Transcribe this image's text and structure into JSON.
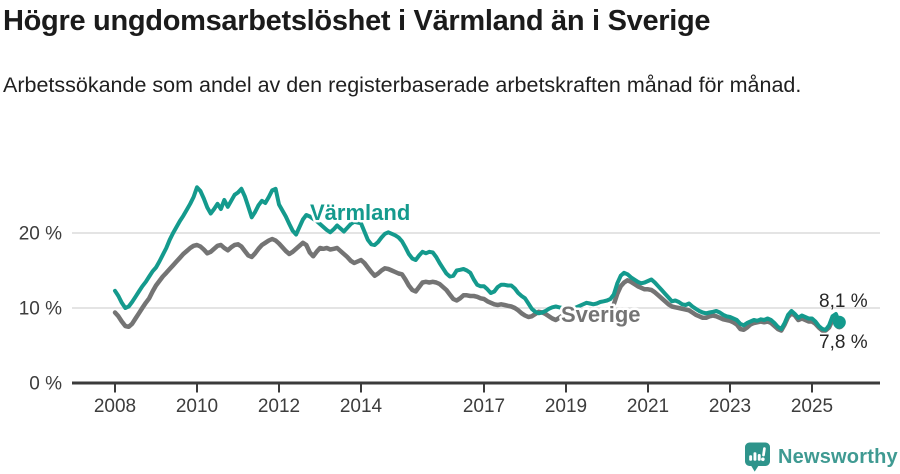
{
  "header": {
    "title": "Högre ungdomsarbetslöshet i Värmland än i Sverige",
    "subtitle": "Arbetssökande som andel av den registerbaserade arbetskraften månad för månad."
  },
  "chart_data": {
    "type": "line",
    "frequency": "monthly",
    "x_start": "2008-01",
    "x_end": "2025-09",
    "unit": "%",
    "grid": "horizontal",
    "legend_position": "inline-labels",
    "ylim": [
      0,
      27
    ],
    "yticks": [
      {
        "value": 0,
        "label": "0 %"
      },
      {
        "value": 10,
        "label": "10 %"
      },
      {
        "value": 20,
        "label": "20 %"
      }
    ],
    "xticks": [
      2008,
      2010,
      2012,
      2014,
      2017,
      2019,
      2021,
      2023,
      2025
    ],
    "series": [
      {
        "name": "Värmland",
        "color": "#149a8d",
        "end_value": 8.1,
        "end_label": "8,1 %",
        "values": [
          12.3,
          11.6,
          10.7,
          10.0,
          10.2,
          10.8,
          11.5,
          12.2,
          12.9,
          13.5,
          14.2,
          14.9,
          15.4,
          16.2,
          17.1,
          18.0,
          19.1,
          20.0,
          20.8,
          21.6,
          22.3,
          23.1,
          23.9,
          24.8,
          26.1,
          25.6,
          24.6,
          23.4,
          22.6,
          23.2,
          23.9,
          23.2,
          24.4,
          23.5,
          24.3,
          25.1,
          25.4,
          25.9,
          24.9,
          23.5,
          22.1,
          22.8,
          23.7,
          24.3,
          24.0,
          24.8,
          25.7,
          25.9,
          23.8,
          23.0,
          22.2,
          21.2,
          20.3,
          19.8,
          20.8,
          21.8,
          22.4,
          22.2,
          21.9,
          21.6,
          21.2,
          20.8,
          20.4,
          20.1,
          20.5,
          21.0,
          20.6,
          20.2,
          20.7,
          21.2,
          21.5,
          21.4,
          21.3,
          20.2,
          19.1,
          18.5,
          18.4,
          18.8,
          19.4,
          19.9,
          20.1,
          19.9,
          19.7,
          19.4,
          18.9,
          18.1,
          17.2,
          16.6,
          16.4,
          17.0,
          17.5,
          17.3,
          17.5,
          17.4,
          16.8,
          16.0,
          15.3,
          14.6,
          14.2,
          14.3,
          15.0,
          15.1,
          15.2,
          15.0,
          14.7,
          13.8,
          13.1,
          12.9,
          12.9,
          12.5,
          12.0,
          12.2,
          12.8,
          13.1,
          13.1,
          13.0,
          13.0,
          12.6,
          12.0,
          11.6,
          11.3,
          10.6,
          9.9,
          9.5,
          9.3,
          9.4,
          9.6,
          9.9,
          10.1,
          10.2,
          10.1,
          10.0,
          10.1,
          10.0,
          9.9,
          10.1,
          10.3,
          10.5,
          10.7,
          10.6,
          10.5,
          10.6,
          10.8,
          10.9,
          11.0,
          11.2,
          11.8,
          13.3,
          14.3,
          14.7,
          14.5,
          14.1,
          13.8,
          13.5,
          13.3,
          13.4,
          13.6,
          13.8,
          13.4,
          12.9,
          12.4,
          11.9,
          11.4,
          10.9,
          11.0,
          10.8,
          10.5,
          10.4,
          10.6,
          10.2,
          9.9,
          9.6,
          9.4,
          9.3,
          9.4,
          9.5,
          9.6,
          9.4,
          9.1,
          8.9,
          8.8,
          8.6,
          8.4,
          7.9,
          7.7,
          8.0,
          8.2,
          8.4,
          8.3,
          8.5,
          8.4,
          8.6,
          8.4,
          8.0,
          7.5,
          7.2,
          8.0,
          9.1,
          9.6,
          9.2,
          8.7,
          9.0,
          8.8,
          8.6,
          8.6,
          8.2,
          7.6,
          7.2,
          7.1,
          7.7,
          8.9,
          9.2,
          8.1
        ]
      },
      {
        "name": "Sverige",
        "color": "#747474",
        "end_value": 7.8,
        "end_label": "7,8 %",
        "values": [
          9.4,
          8.9,
          8.2,
          7.6,
          7.5,
          7.9,
          8.6,
          9.3,
          10.0,
          10.7,
          11.3,
          12.2,
          13.0,
          13.6,
          14.2,
          14.7,
          15.2,
          15.7,
          16.2,
          16.7,
          17.2,
          17.6,
          18.0,
          18.3,
          18.4,
          18.2,
          17.8,
          17.3,
          17.5,
          17.9,
          18.3,
          18.4,
          18.0,
          17.7,
          18.1,
          18.4,
          18.5,
          18.2,
          17.6,
          17.0,
          16.8,
          17.3,
          17.9,
          18.4,
          18.7,
          19.0,
          19.2,
          19.0,
          18.6,
          18.1,
          17.6,
          17.2,
          17.5,
          17.9,
          18.3,
          18.7,
          18.4,
          17.4,
          16.9,
          17.5,
          18.0,
          17.9,
          18.0,
          17.8,
          17.9,
          18.0,
          17.6,
          17.2,
          16.8,
          16.3,
          16.0,
          16.2,
          16.4,
          16.0,
          15.4,
          14.8,
          14.3,
          14.6,
          15.0,
          15.3,
          15.2,
          15.0,
          14.8,
          14.6,
          14.5,
          13.8,
          13.0,
          12.4,
          12.2,
          12.8,
          13.4,
          13.5,
          13.4,
          13.5,
          13.4,
          13.2,
          12.8,
          12.4,
          11.8,
          11.2,
          11.0,
          11.3,
          11.7,
          11.7,
          11.6,
          11.6,
          11.5,
          11.3,
          11.2,
          10.9,
          10.7,
          10.5,
          10.4,
          10.5,
          10.4,
          10.3,
          10.2,
          10.0,
          9.7,
          9.3,
          9.0,
          8.8,
          8.9,
          9.2,
          9.5,
          9.4,
          9.2,
          8.9,
          8.6,
          8.4,
          8.7,
          9.0,
          9.2,
          9.3,
          9.4,
          9.3,
          9.2,
          9.3,
          9.4,
          9.5,
          9.4,
          9.3,
          9.5,
          9.6,
          9.7,
          9.9,
          10.5,
          11.9,
          12.9,
          13.4,
          13.7,
          13.5,
          13.2,
          12.9,
          12.7,
          12.5,
          12.5,
          12.4,
          12.1,
          11.7,
          11.3,
          10.9,
          10.5,
          10.2,
          10.1,
          10.0,
          9.9,
          9.8,
          9.7,
          9.4,
          9.1,
          8.9,
          8.7,
          8.7,
          8.9,
          9.0,
          8.9,
          8.7,
          8.5,
          8.4,
          8.3,
          8.1,
          7.8,
          7.2,
          7.1,
          7.4,
          7.8,
          8.0,
          8.1,
          8.2,
          8.1,
          8.2,
          8.0,
          7.6,
          7.2,
          7.0,
          7.8,
          8.8,
          9.3,
          9.0,
          8.4,
          8.6,
          8.4,
          8.2,
          8.2,
          7.9,
          7.4,
          7.0,
          7.0,
          7.4,
          8.4,
          8.8,
          7.8
        ]
      }
    ],
    "colors": {
      "axis": "#3b3b3b",
      "grid": "#dcdcdc",
      "varmland": "#149a8d",
      "sverige": "#747474"
    }
  },
  "footer": {
    "brand": "Newsworthy",
    "brand_color": "#3f9a92",
    "icon": "bar-chart-speech-bubble-icon"
  }
}
